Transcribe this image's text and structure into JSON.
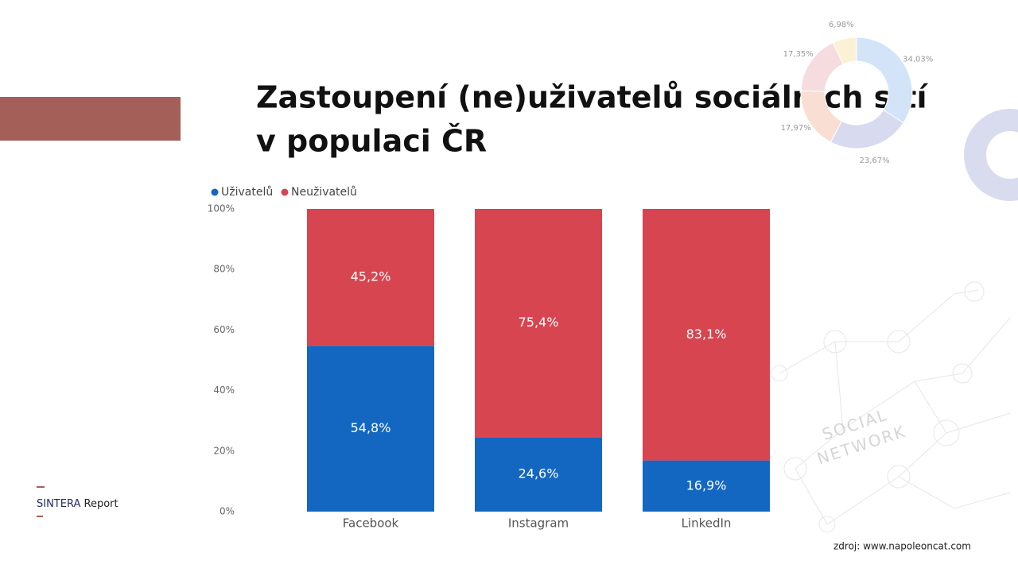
{
  "chart_data": [
    {
      "type": "stacked-bar",
      "title": "Zastoupení (ne)uživatelů sociálních sítí v populaci ČR",
      "categories": [
        "Facebook",
        "Instagram",
        "LinkedIn"
      ],
      "series": [
        {
          "name": "Uživatelů",
          "color": "#1467c1",
          "values": [
            54.8,
            24.6,
            16.9
          ],
          "value_labels": [
            "54,8%",
            "24,6%",
            "16,9%"
          ]
        },
        {
          "name": "Neuživatelů",
          "color": "#d64550",
          "values": [
            45.2,
            75.4,
            83.1
          ],
          "value_labels": [
            "45,2%",
            "75,4%",
            "83,1%"
          ]
        }
      ],
      "ylim": [
        0,
        100
      ],
      "yticks": [
        {
          "value": 0,
          "label": "0%"
        },
        {
          "value": 20,
          "label": "20%"
        },
        {
          "value": 40,
          "label": "40%"
        },
        {
          "value": 60,
          "label": "60%"
        },
        {
          "value": 80,
          "label": "80%"
        },
        {
          "value": 100,
          "label": "100%"
        }
      ],
      "legend": "top-left",
      "source": "zdroj: www.napoleoncat.com"
    },
    {
      "type": "donut",
      "values": [
        34.03,
        23.67,
        17.97,
        17.35,
        6.98
      ],
      "value_labels": [
        "34,03%",
        "23,67%",
        "17,97%",
        "17,35%",
        "6,98%"
      ],
      "colors": [
        "#d3e3f8",
        "#d8daef",
        "#f9dfd3",
        "#f7dcdf",
        "#fbf2d6"
      ]
    }
  ],
  "logo": {
    "brand": "SINTERA",
    "product": "Report"
  },
  "background_text": [
    "SOCIAL",
    "NETWORK"
  ]
}
